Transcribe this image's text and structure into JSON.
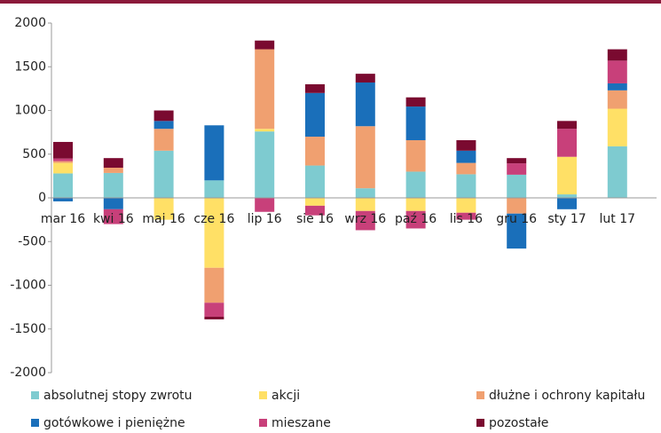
{
  "chart_data": {
    "type": "stacked_bar",
    "categories": [
      "mar 16",
      "kwi 16",
      "maj 16",
      "cze 16",
      "lip 16",
      "sie 16",
      "wrz 16",
      "paź 16",
      "lis 16",
      "gru 16",
      "sty 17",
      "lut 17"
    ],
    "series": [
      {
        "name": "absolutnej stopy zwrotu",
        "color": "#7ecbd0",
        "values": [
          280,
          285,
          540,
          200,
          760,
          370,
          110,
          300,
          270,
          265,
          40,
          590
        ]
      },
      {
        "name": "akcji",
        "color": "#ffe066",
        "values": [
          120,
          0,
          -250,
          -800,
          30,
          -90,
          -150,
          -150,
          -170,
          0,
          430,
          430
        ]
      },
      {
        "name": "dłużne i ochrony kapitału",
        "color": "#f0a070",
        "values": [
          20,
          60,
          250,
          -400,
          910,
          330,
          710,
          360,
          130,
          -180,
          0,
          210
        ]
      },
      {
        "name": "gotówkowe i pieniężne",
        "color": "#1a6fba",
        "values": [
          -40,
          -130,
          90,
          630,
          0,
          500,
          500,
          385,
          140,
          -400,
          -130,
          80
        ]
      },
      {
        "name": "mieszane",
        "color": "#c8407a",
        "values": [
          30,
          -170,
          0,
          -160,
          -160,
          -110,
          -220,
          -200,
          -80,
          130,
          320,
          260
        ]
      },
      {
        "name": "pozostałe",
        "color": "#7a0a30",
        "values": [
          190,
          110,
          120,
          -30,
          100,
          100,
          100,
          105,
          120,
          60,
          90,
          130
        ]
      }
    ],
    "ylim": [
      -2000,
      2000
    ],
    "yticks": [
      -2000,
      -1500,
      -1000,
      -500,
      0,
      500,
      1000,
      1500,
      2000
    ],
    "legend": "bottom"
  }
}
